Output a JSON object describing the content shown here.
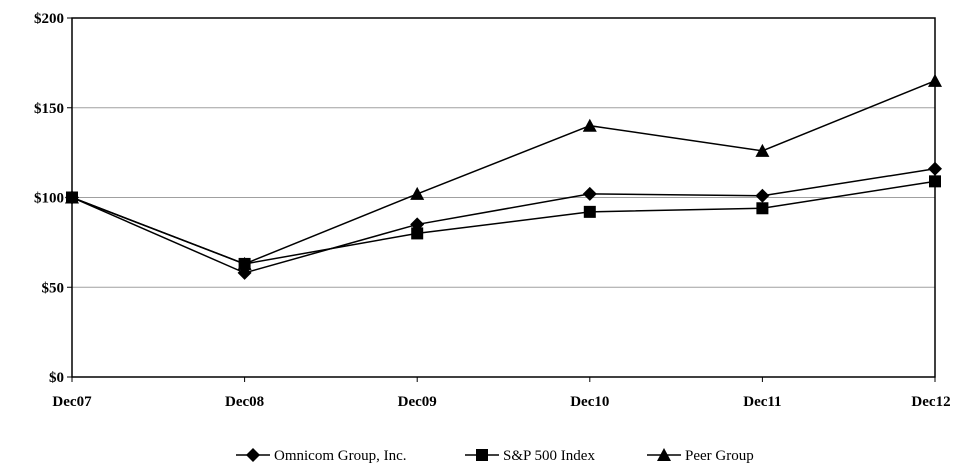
{
  "chart_data": {
    "type": "line",
    "title": "",
    "xlabel": "",
    "ylabel": "",
    "categories": [
      "Dec07",
      "Dec08",
      "Dec09",
      "Dec10",
      "Dec11",
      "Dec12"
    ],
    "ylim": [
      0,
      200
    ],
    "yticks": [
      0,
      50,
      100,
      150,
      200
    ],
    "ytick_labels": [
      "$0",
      "$50",
      "$100",
      "$150",
      "$200"
    ],
    "grid": true,
    "legend_position": "bottom",
    "series": [
      {
        "name": "Omnicom Group, Inc.",
        "marker": "diamond",
        "values": [
          100,
          58,
          85,
          102,
          101,
          116
        ]
      },
      {
        "name": "S&P 500 Index",
        "marker": "square",
        "values": [
          100,
          63,
          80,
          92,
          94,
          109
        ]
      },
      {
        "name": "Peer Group",
        "marker": "triangle",
        "values": [
          100,
          63,
          102,
          140,
          126,
          165
        ]
      }
    ],
    "colors": {
      "line": "#000000",
      "grid": "#a0a0a0",
      "axis": "#000000"
    }
  }
}
